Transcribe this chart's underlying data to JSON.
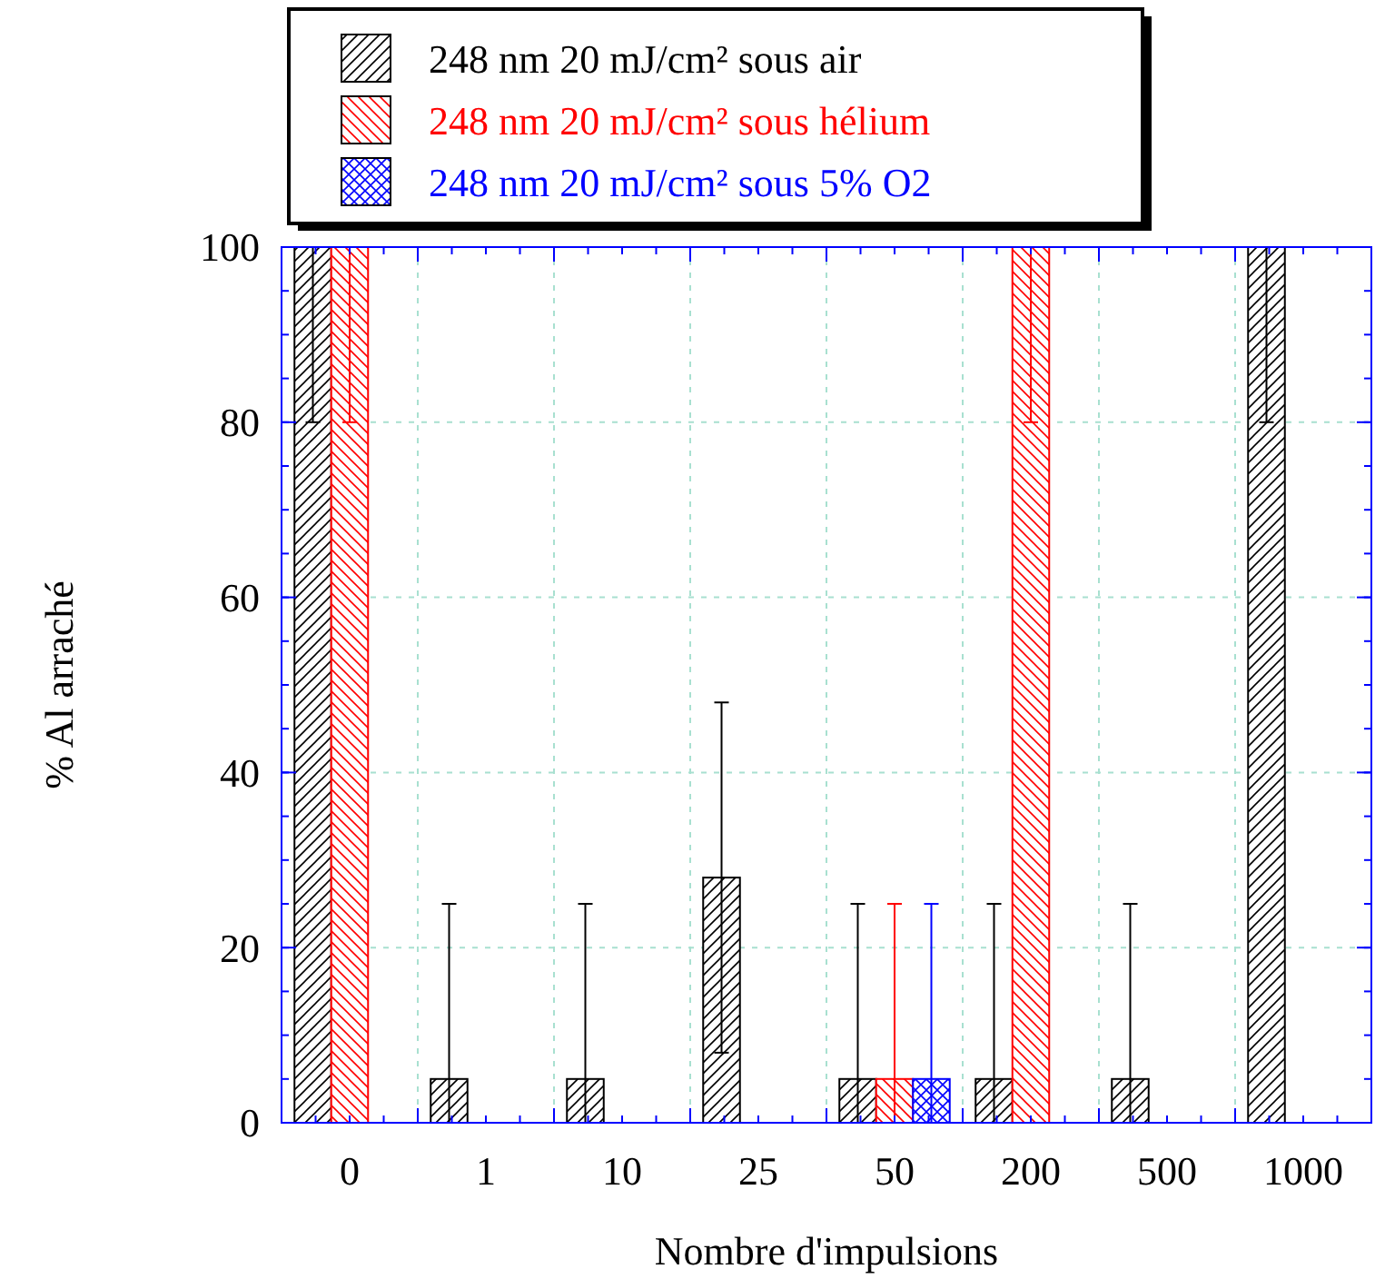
{
  "chart_data": {
    "type": "bar",
    "xlabel": "Nombre d'impulsions",
    "ylabel": "% Al arraché",
    "categories": [
      "0",
      "1",
      "10",
      "25",
      "50",
      "200",
      "500",
      "1000"
    ],
    "series": [
      {
        "name": "248 nm 20 mJ/cm² sous air",
        "color": "#000000",
        "values": [
          100,
          5,
          5,
          28,
          5,
          5,
          5,
          100
        ],
        "errors": [
          [
            80,
            100
          ],
          [
            0,
            25
          ],
          [
            0,
            25
          ],
          [
            8,
            48
          ],
          [
            0,
            25
          ],
          [
            0,
            25
          ],
          [
            0,
            25
          ],
          [
            80,
            100
          ]
        ]
      },
      {
        "name": "248 nm 20 mJ/cm² sous hélium",
        "color": "#ff0000",
        "values": [
          100,
          null,
          null,
          null,
          5,
          100,
          null,
          null
        ],
        "errors": [
          [
            80,
            100
          ],
          null,
          null,
          null,
          [
            0,
            25
          ],
          [
            80,
            100
          ],
          null,
          null
        ]
      },
      {
        "name": "248 nm 20 mJ/cm² sous 5% O2",
        "color": "#0000ff",
        "values": [
          null,
          null,
          null,
          null,
          5,
          null,
          null,
          null
        ],
        "errors": [
          null,
          null,
          null,
          null,
          [
            0,
            25
          ],
          null,
          null,
          null
        ]
      }
    ],
    "ylim": [
      0,
      100
    ],
    "yticks": [
      0,
      20,
      40,
      60,
      80,
      100
    ],
    "grid": true,
    "legend": "top"
  }
}
